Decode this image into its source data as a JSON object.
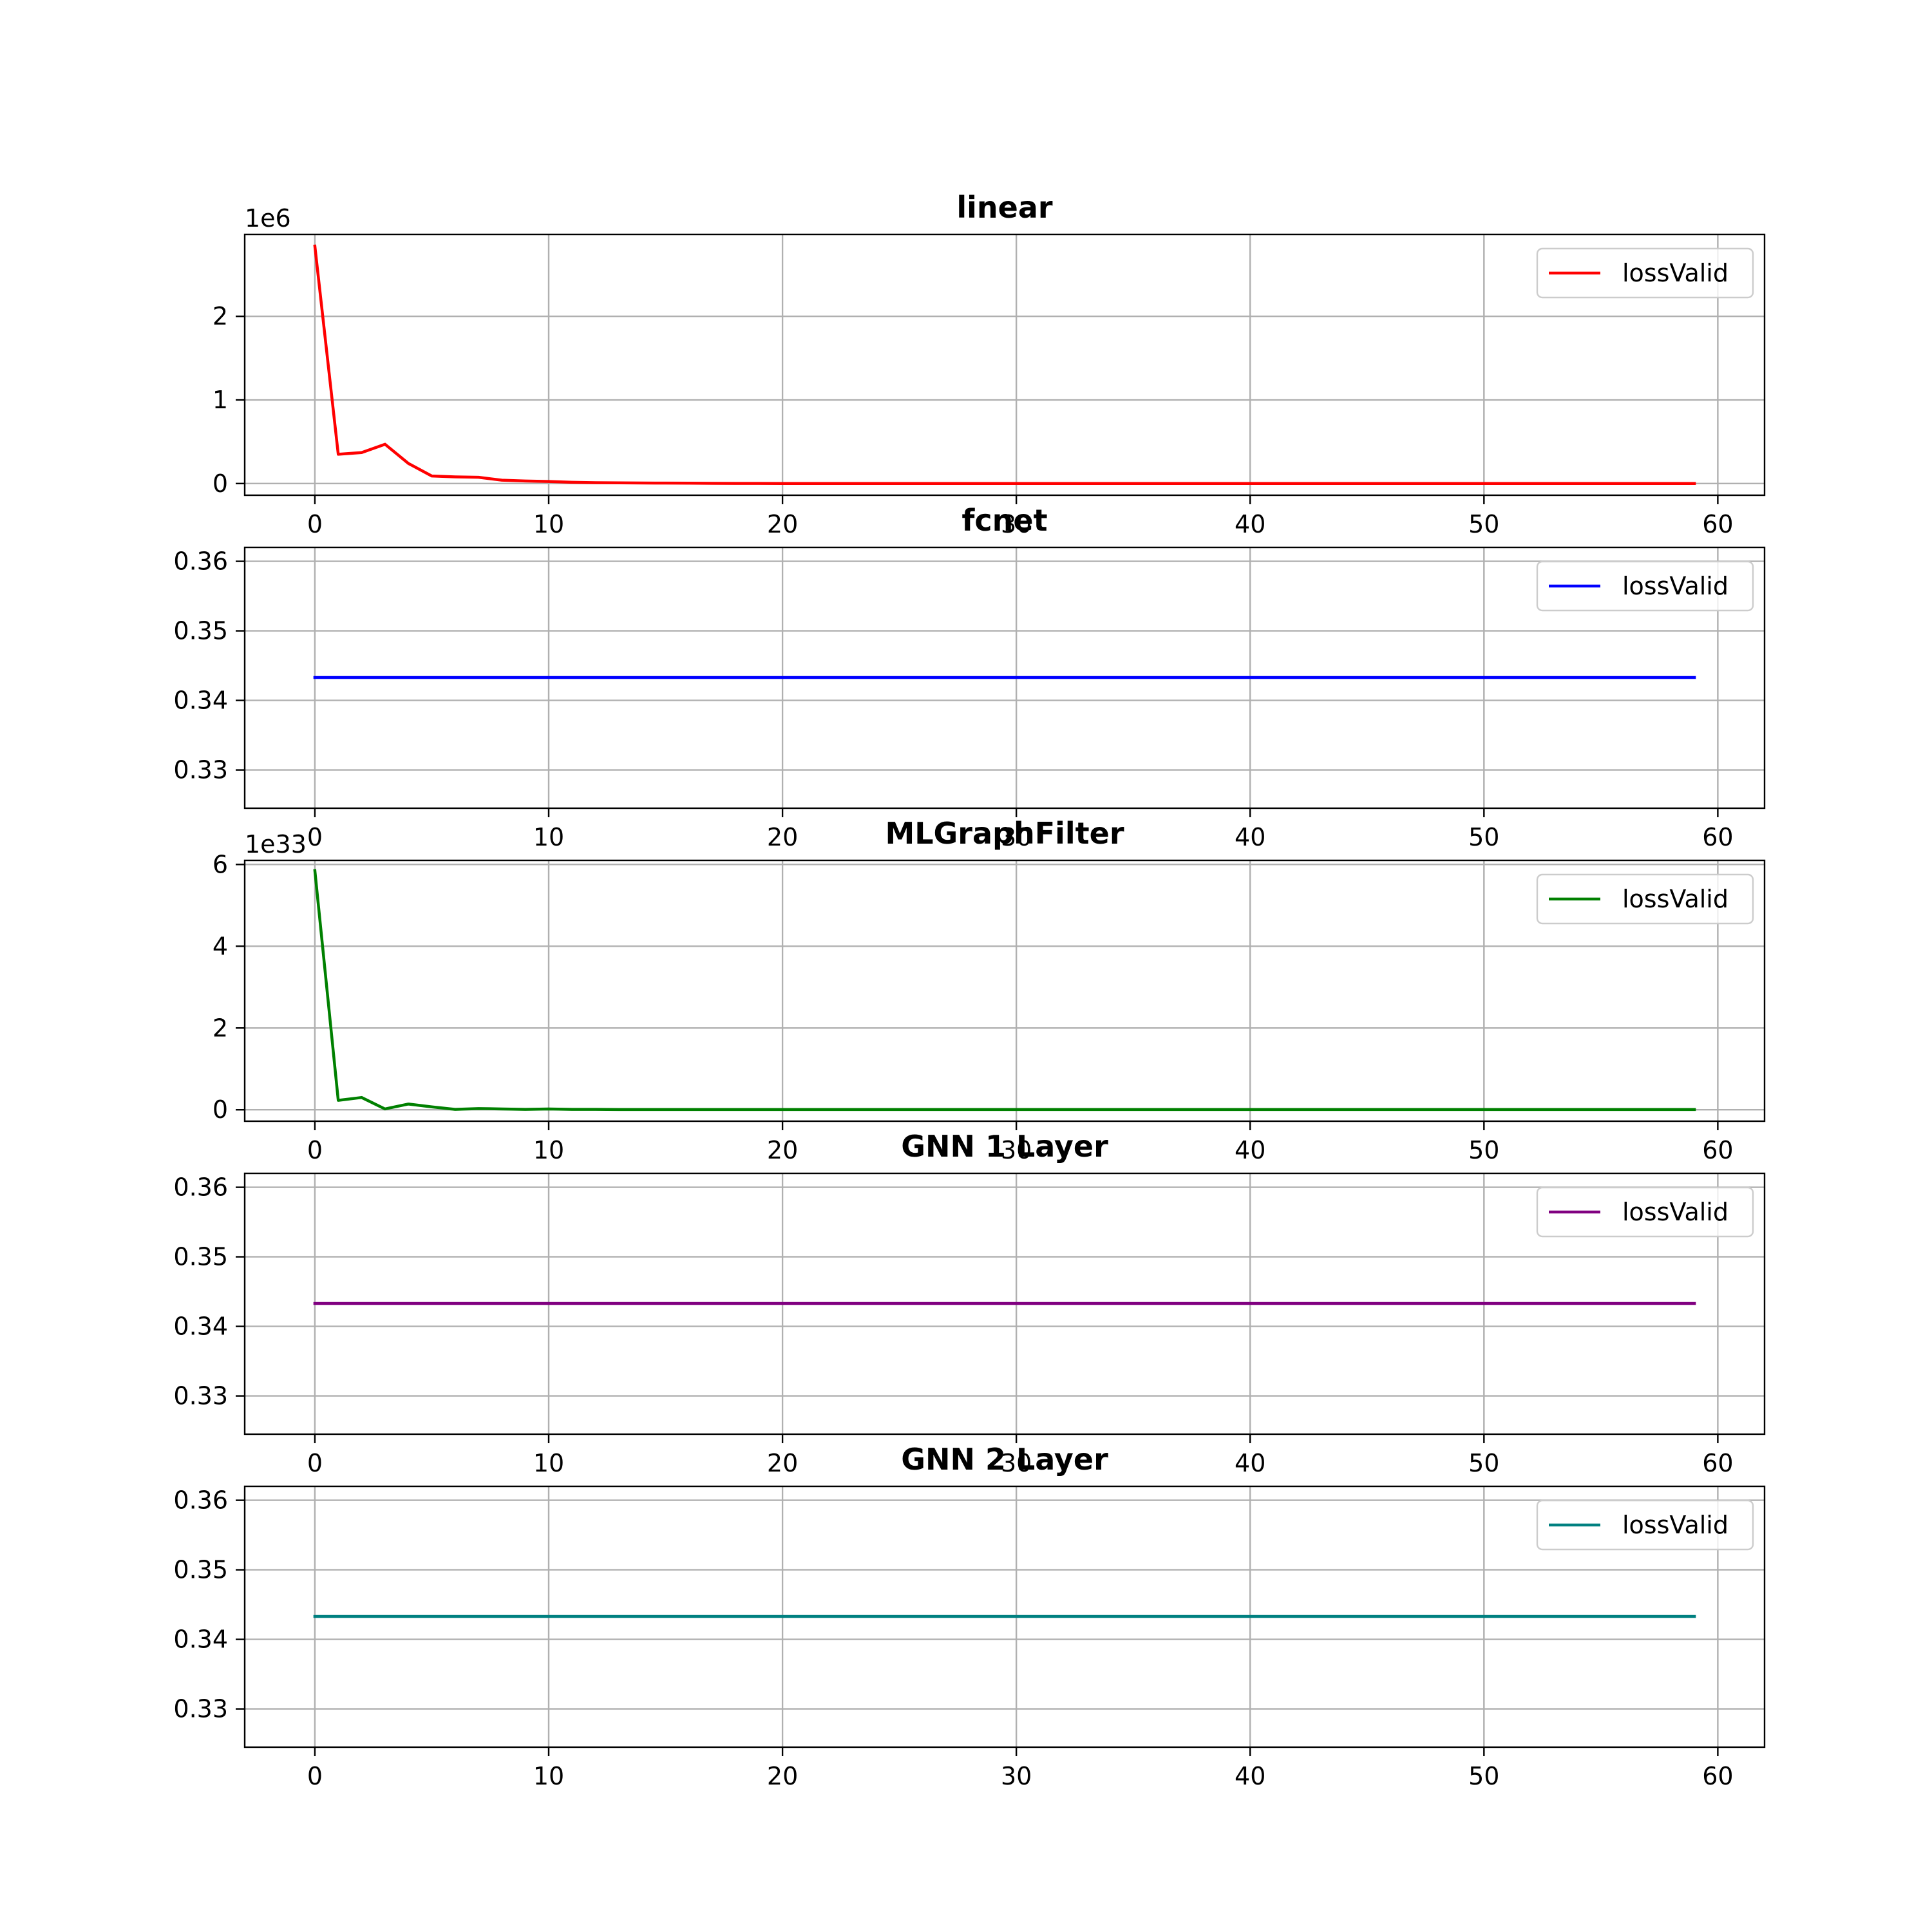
{
  "chart_data": [
    {
      "type": "line",
      "title": "linear",
      "exponent_label": "1e6",
      "xlim": [
        -3,
        62
      ],
      "ylim": [
        -0.14,
        2.98
      ],
      "xticks": [
        0,
        10,
        20,
        30,
        40,
        50,
        60
      ],
      "xtick_labels": [
        "0",
        "10",
        "20",
        "30",
        "40",
        "50",
        "60"
      ],
      "yticks": [
        0,
        1,
        2
      ],
      "ytick_labels": [
        "0",
        "1",
        "2"
      ],
      "grid": true,
      "legend_position": "top-right",
      "series": [
        {
          "name": "lossValid",
          "color": "#ff0000",
          "x": [
            0,
            1,
            2,
            3,
            4,
            5,
            6,
            7,
            8,
            9,
            10,
            11,
            12,
            13,
            14,
            15,
            16,
            17,
            18,
            19,
            20,
            21,
            22,
            23,
            24,
            25,
            26,
            27,
            28,
            29,
            30,
            31,
            32,
            33,
            34,
            35,
            36,
            37,
            38,
            39,
            40,
            41,
            42,
            43,
            44,
            45,
            46,
            47,
            48,
            49,
            50,
            51,
            52,
            53,
            54,
            55,
            56,
            57,
            58,
            59
          ],
          "y": [
            2.84,
            0.35,
            0.37,
            0.47,
            0.24,
            0.09,
            0.08,
            0.075,
            0.04,
            0.03,
            0.025,
            0.015,
            0.01,
            0.008,
            0.006,
            0.005,
            0.004,
            0.003,
            0.002,
            0.002,
            0.001,
            0.001,
            0.001,
            0.001,
            0.001,
            0.001,
            0.001,
            0.001,
            0.001,
            0.001,
            0.001,
            0.001,
            0.001,
            0.001,
            0.001,
            0.001,
            0.001,
            0.001,
            0.001,
            0.001,
            0.001,
            0.001,
            0.001,
            0.001,
            0.001,
            0.001,
            0.001,
            0.001,
            0.001,
            0.001,
            0.001,
            0.001,
            0.001,
            0.001,
            0.001,
            0.001,
            0.001,
            0.001,
            0.001,
            0.001
          ]
        }
      ]
    },
    {
      "type": "line",
      "title": "fcnet",
      "exponent_label": "",
      "xlim": [
        -3,
        62
      ],
      "ylim": [
        0.3245,
        0.362
      ],
      "xticks": [
        0,
        10,
        20,
        30,
        40,
        50,
        60
      ],
      "xtick_labels": [
        "0",
        "10",
        "20",
        "30",
        "40",
        "50",
        "60"
      ],
      "yticks": [
        0.33,
        0.34,
        0.35,
        0.36
      ],
      "ytick_labels": [
        "0.33",
        "0.34",
        "0.35",
        "0.36"
      ],
      "grid": true,
      "legend_position": "top-right",
      "series": [
        {
          "name": "lossValid",
          "color": "#0000ff",
          "x": [
            0,
            59
          ],
          "y": [
            0.3433,
            0.3433
          ]
        }
      ]
    },
    {
      "type": "line",
      "title": "MLGraphFilter",
      "exponent_label": "1e33",
      "xlim": [
        -3,
        62
      ],
      "ylim": [
        -0.28,
        6.1
      ],
      "xticks": [
        0,
        10,
        20,
        30,
        40,
        50,
        60
      ],
      "xtick_labels": [
        "0",
        "10",
        "20",
        "30",
        "40",
        "50",
        "60"
      ],
      "yticks": [
        0,
        2,
        4,
        6
      ],
      "ytick_labels": [
        "0",
        "2",
        "4",
        "6"
      ],
      "grid": true,
      "legend_position": "top-right",
      "series": [
        {
          "name": "lossValid",
          "color": "#008000",
          "x": [
            0,
            1,
            2,
            3,
            4,
            5,
            6,
            7,
            8,
            9,
            10,
            11,
            12,
            13,
            14,
            15,
            16,
            17,
            18,
            19,
            20,
            21,
            22,
            23,
            24,
            25,
            26,
            27,
            28,
            29,
            30,
            31,
            32,
            33,
            34,
            35,
            36,
            37,
            38,
            39,
            40,
            41,
            42,
            43,
            44,
            45,
            46,
            47,
            48,
            49,
            50,
            51,
            52,
            53,
            54,
            55,
            56,
            57,
            58,
            59
          ],
          "y": [
            5.85,
            0.23,
            0.3,
            0.02,
            0.14,
            0.07,
            0.01,
            0.03,
            0.02,
            0.01,
            0.02,
            0.01,
            0.01,
            0.005,
            0.005,
            0.005,
            0.005,
            0.005,
            0.005,
            0.005,
            0.005,
            0.005,
            0.005,
            0.005,
            0.005,
            0.005,
            0.005,
            0.005,
            0.005,
            0.005,
            0.005,
            0.005,
            0.005,
            0.005,
            0.005,
            0.005,
            0.005,
            0.005,
            0.005,
            0.005,
            0.005,
            0.005,
            0.005,
            0.005,
            0.005,
            0.005,
            0.005,
            0.005,
            0.005,
            0.005,
            0.005,
            0.005,
            0.005,
            0.005,
            0.005,
            0.005,
            0.005,
            0.005,
            0.005,
            0.005
          ]
        }
      ]
    },
    {
      "type": "line",
      "title": "GNN 1 Layer",
      "exponent_label": "",
      "xlim": [
        -3,
        62
      ],
      "ylim": [
        0.3245,
        0.362
      ],
      "xticks": [
        0,
        10,
        20,
        30,
        40,
        50,
        60
      ],
      "xtick_labels": [
        "0",
        "10",
        "20",
        "30",
        "40",
        "50",
        "60"
      ],
      "yticks": [
        0.33,
        0.34,
        0.35,
        0.36
      ],
      "ytick_labels": [
        "0.33",
        "0.34",
        "0.35",
        "0.36"
      ],
      "grid": true,
      "legend_position": "top-right",
      "series": [
        {
          "name": "lossValid",
          "color": "#800080",
          "x": [
            0,
            59
          ],
          "y": [
            0.3433,
            0.3433
          ]
        }
      ]
    },
    {
      "type": "line",
      "title": "GNN 2 Layer",
      "exponent_label": "",
      "xlim": [
        -3,
        62
      ],
      "ylim": [
        0.3245,
        0.362
      ],
      "xticks": [
        0,
        10,
        20,
        30,
        40,
        50,
        60
      ],
      "xtick_labels": [
        "0",
        "10",
        "20",
        "30",
        "40",
        "50",
        "60"
      ],
      "yticks": [
        0.33,
        0.34,
        0.35,
        0.36
      ],
      "ytick_labels": [
        "0.33",
        "0.34",
        "0.35",
        "0.36"
      ],
      "grid": true,
      "legend_position": "top-right",
      "series": [
        {
          "name": "lossValid",
          "color": "#008080",
          "x": [
            0,
            59
          ],
          "y": [
            0.3433,
            0.3433
          ]
        }
      ]
    }
  ]
}
